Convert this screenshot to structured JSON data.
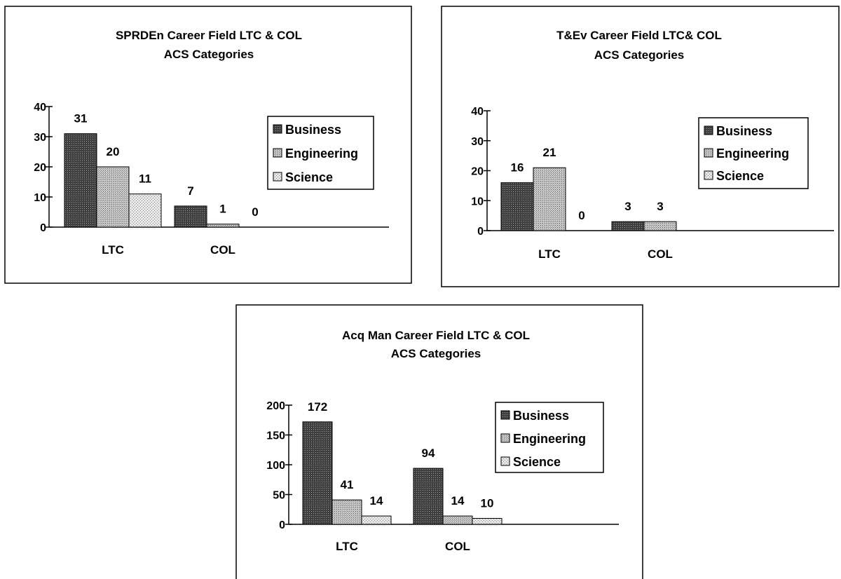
{
  "chart_data": [
    {
      "type": "bar",
      "title": "SPRDEn Career Field LTC & COL",
      "subtitle": "ACS Categories",
      "categories": [
        "LTC",
        "COL"
      ],
      "series": [
        {
          "name": "Business",
          "values": [
            31,
            7
          ]
        },
        {
          "name": "Engineering",
          "values": [
            20,
            1
          ]
        },
        {
          "name": "Science",
          "values": [
            11,
            0
          ]
        }
      ],
      "ylim": [
        0,
        40
      ],
      "yticks": [
        "0",
        "10",
        "20",
        "30",
        "40"
      ],
      "xlabel": "",
      "ylabel": "",
      "grid": false,
      "legend": "right"
    },
    {
      "type": "bar",
      "title": "T&Ev Career Field LTC& COL",
      "subtitle": "ACS Categories",
      "categories": [
        "LTC",
        "COL"
      ],
      "series": [
        {
          "name": "Business",
          "values": [
            16,
            3
          ]
        },
        {
          "name": "Engineering",
          "values": [
            21,
            3
          ]
        },
        {
          "name": "Science",
          "values": [
            0,
            null
          ]
        }
      ],
      "ylim": [
        0,
        40
      ],
      "yticks": [
        "0",
        "10",
        "20",
        "30",
        "40"
      ],
      "xlabel": "",
      "ylabel": "",
      "grid": false,
      "legend": "right"
    },
    {
      "type": "bar",
      "title": "Acq Man Career Field LTC & COL",
      "subtitle": "ACS Categories",
      "categories": [
        "LTC",
        "COL"
      ],
      "series": [
        {
          "name": "Business",
          "values": [
            172,
            94
          ]
        },
        {
          "name": "Engineering",
          "values": [
            41,
            14
          ]
        },
        {
          "name": "Science",
          "values": [
            14,
            10
          ]
        }
      ],
      "ylim": [
        0,
        200
      ],
      "yticks": [
        "0",
        "50",
        "100",
        "150",
        "200"
      ],
      "xlabel": "",
      "ylabel": "",
      "grid": false,
      "legend": "right"
    }
  ],
  "colors": {
    "business": "#4a4a4a",
    "engineering": "#bdbdbd",
    "science": "#dedede",
    "frame": "#000000",
    "background": "#ffffff"
  }
}
